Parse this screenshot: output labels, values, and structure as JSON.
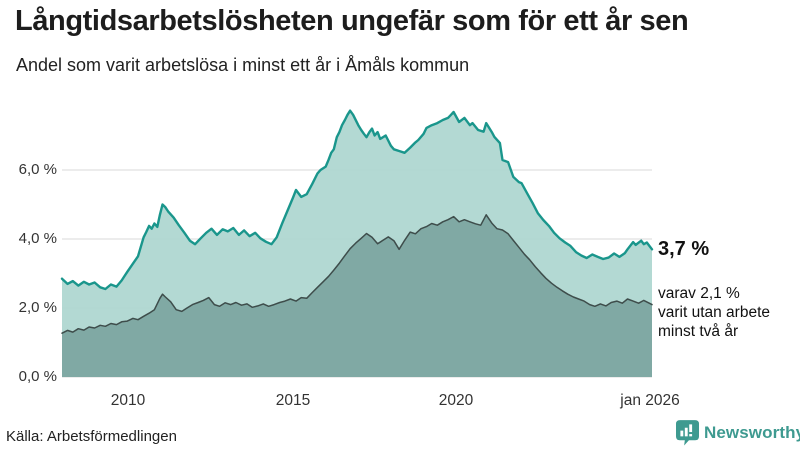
{
  "chart_data": {
    "type": "area",
    "title": "Långtidsarbetslösheten ungefär som för ett år sen",
    "subtitle": "Andel som varit arbetslösa i minst ett år i Åmåls kommun",
    "grid": true,
    "legend_position": "none",
    "x_axis": {
      "min": 2008.0,
      "max": 2026.08,
      "ticks": [
        {
          "year": 2010,
          "label": "2010"
        },
        {
          "year": 2015,
          "label": "2015"
        },
        {
          "year": 2020,
          "label": "2020"
        },
        {
          "year": 2026.08,
          "label": "jan 2026"
        }
      ]
    },
    "y_axis": {
      "min": 0,
      "max": 7.8,
      "unit": "%",
      "ticks": [
        {
          "value": 0,
          "label": "0,0 %"
        },
        {
          "value": 2,
          "label": "2,0 %"
        },
        {
          "value": 4,
          "label": "4,0 %"
        },
        {
          "value": 6,
          "label": "6,0 %"
        }
      ]
    },
    "series": [
      {
        "name": "Arbetslösa minst ett år",
        "line_color": "#1a968c",
        "fill_color": "#acd6cf",
        "end_value": 3.7,
        "points": [
          [
            2008.0,
            2.85
          ],
          [
            2008.17,
            2.7
          ],
          [
            2008.33,
            2.78
          ],
          [
            2008.5,
            2.65
          ],
          [
            2008.67,
            2.76
          ],
          [
            2008.83,
            2.68
          ],
          [
            2009.0,
            2.74
          ],
          [
            2009.17,
            2.6
          ],
          [
            2009.33,
            2.55
          ],
          [
            2009.5,
            2.68
          ],
          [
            2009.67,
            2.62
          ],
          [
            2009.83,
            2.8
          ],
          [
            2010.0,
            3.05
          ],
          [
            2010.17,
            3.28
          ],
          [
            2010.33,
            3.5
          ],
          [
            2010.5,
            4.05
          ],
          [
            2010.58,
            4.2
          ],
          [
            2010.67,
            4.38
          ],
          [
            2010.75,
            4.3
          ],
          [
            2010.83,
            4.45
          ],
          [
            2010.92,
            4.35
          ],
          [
            2011.0,
            4.7
          ],
          [
            2011.08,
            5.0
          ],
          [
            2011.17,
            4.92
          ],
          [
            2011.25,
            4.8
          ],
          [
            2011.42,
            4.62
          ],
          [
            2011.58,
            4.4
          ],
          [
            2011.75,
            4.18
          ],
          [
            2011.92,
            3.95
          ],
          [
            2012.08,
            3.85
          ],
          [
            2012.25,
            4.02
          ],
          [
            2012.42,
            4.18
          ],
          [
            2012.58,
            4.3
          ],
          [
            2012.75,
            4.12
          ],
          [
            2012.92,
            4.28
          ],
          [
            2013.08,
            4.22
          ],
          [
            2013.25,
            4.32
          ],
          [
            2013.42,
            4.12
          ],
          [
            2013.58,
            4.25
          ],
          [
            2013.75,
            4.08
          ],
          [
            2013.92,
            4.18
          ],
          [
            2014.08,
            4.02
          ],
          [
            2014.25,
            3.92
          ],
          [
            2014.42,
            3.85
          ],
          [
            2014.58,
            4.05
          ],
          [
            2014.75,
            4.46
          ],
          [
            2014.92,
            4.84
          ],
          [
            2015.08,
            5.2
          ],
          [
            2015.17,
            5.42
          ],
          [
            2015.33,
            5.22
          ],
          [
            2015.5,
            5.3
          ],
          [
            2015.67,
            5.6
          ],
          [
            2015.83,
            5.9
          ],
          [
            2015.92,
            6.0
          ],
          [
            2016.08,
            6.1
          ],
          [
            2016.17,
            6.3
          ],
          [
            2016.25,
            6.5
          ],
          [
            2016.33,
            6.6
          ],
          [
            2016.42,
            6.95
          ],
          [
            2016.5,
            7.1
          ],
          [
            2016.58,
            7.3
          ],
          [
            2016.67,
            7.45
          ],
          [
            2016.75,
            7.6
          ],
          [
            2016.83,
            7.72
          ],
          [
            2016.92,
            7.6
          ],
          [
            2017.08,
            7.3
          ],
          [
            2017.17,
            7.16
          ],
          [
            2017.25,
            7.05
          ],
          [
            2017.33,
            6.95
          ],
          [
            2017.42,
            7.1
          ],
          [
            2017.5,
            7.2
          ],
          [
            2017.58,
            7.0
          ],
          [
            2017.67,
            7.1
          ],
          [
            2017.75,
            6.9
          ],
          [
            2017.92,
            7.0
          ],
          [
            2018.08,
            6.7
          ],
          [
            2018.17,
            6.6
          ],
          [
            2018.33,
            6.55
          ],
          [
            2018.5,
            6.5
          ],
          [
            2018.67,
            6.65
          ],
          [
            2018.83,
            6.8
          ],
          [
            2018.92,
            6.87
          ],
          [
            2019.08,
            7.05
          ],
          [
            2019.17,
            7.22
          ],
          [
            2019.33,
            7.3
          ],
          [
            2019.5,
            7.36
          ],
          [
            2019.67,
            7.45
          ],
          [
            2019.83,
            7.51
          ],
          [
            2019.92,
            7.6
          ],
          [
            2020.0,
            7.68
          ],
          [
            2020.17,
            7.39
          ],
          [
            2020.33,
            7.51
          ],
          [
            2020.5,
            7.3
          ],
          [
            2020.58,
            7.36
          ],
          [
            2020.75,
            7.16
          ],
          [
            2020.92,
            7.11
          ],
          [
            2021.0,
            7.36
          ],
          [
            2021.17,
            7.1
          ],
          [
            2021.25,
            6.96
          ],
          [
            2021.42,
            6.78
          ],
          [
            2021.5,
            6.29
          ],
          [
            2021.67,
            6.23
          ],
          [
            2021.83,
            5.8
          ],
          [
            2022.0,
            5.65
          ],
          [
            2022.08,
            5.62
          ],
          [
            2022.25,
            5.33
          ],
          [
            2022.42,
            5.04
          ],
          [
            2022.58,
            4.75
          ],
          [
            2022.75,
            4.55
          ],
          [
            2022.92,
            4.38
          ],
          [
            2023.08,
            4.18
          ],
          [
            2023.25,
            4.02
          ],
          [
            2023.42,
            3.9
          ],
          [
            2023.58,
            3.8
          ],
          [
            2023.75,
            3.62
          ],
          [
            2023.92,
            3.52
          ],
          [
            2024.08,
            3.45
          ],
          [
            2024.25,
            3.55
          ],
          [
            2024.42,
            3.48
          ],
          [
            2024.58,
            3.42
          ],
          [
            2024.75,
            3.46
          ],
          [
            2024.92,
            3.58
          ],
          [
            2025.08,
            3.48
          ],
          [
            2025.25,
            3.59
          ],
          [
            2025.33,
            3.7
          ],
          [
            2025.5,
            3.91
          ],
          [
            2025.58,
            3.83
          ],
          [
            2025.75,
            3.95
          ],
          [
            2025.83,
            3.85
          ],
          [
            2025.92,
            3.9
          ],
          [
            2026.08,
            3.7
          ]
        ]
      },
      {
        "name": "Arbetslösa minst två år",
        "line_color": "#3e4d4b",
        "fill_color": "#7ca5a0",
        "end_value": 2.1,
        "points": [
          [
            2008.0,
            1.27
          ],
          [
            2008.17,
            1.35
          ],
          [
            2008.33,
            1.3
          ],
          [
            2008.5,
            1.4
          ],
          [
            2008.67,
            1.36
          ],
          [
            2008.83,
            1.45
          ],
          [
            2009.0,
            1.42
          ],
          [
            2009.17,
            1.5
          ],
          [
            2009.33,
            1.47
          ],
          [
            2009.5,
            1.55
          ],
          [
            2009.67,
            1.52
          ],
          [
            2009.83,
            1.6
          ],
          [
            2010.0,
            1.62
          ],
          [
            2010.17,
            1.7
          ],
          [
            2010.33,
            1.66
          ],
          [
            2010.5,
            1.76
          ],
          [
            2010.67,
            1.85
          ],
          [
            2010.83,
            1.95
          ],
          [
            2011.0,
            2.28
          ],
          [
            2011.08,
            2.4
          ],
          [
            2011.17,
            2.32
          ],
          [
            2011.33,
            2.18
          ],
          [
            2011.5,
            1.95
          ],
          [
            2011.67,
            1.9
          ],
          [
            2011.83,
            2.0
          ],
          [
            2012.0,
            2.1
          ],
          [
            2012.17,
            2.16
          ],
          [
            2012.33,
            2.22
          ],
          [
            2012.5,
            2.3
          ],
          [
            2012.67,
            2.1
          ],
          [
            2012.83,
            2.05
          ],
          [
            2013.0,
            2.15
          ],
          [
            2013.17,
            2.1
          ],
          [
            2013.33,
            2.16
          ],
          [
            2013.5,
            2.08
          ],
          [
            2013.67,
            2.12
          ],
          [
            2013.83,
            2.02
          ],
          [
            2014.0,
            2.06
          ],
          [
            2014.17,
            2.12
          ],
          [
            2014.33,
            2.05
          ],
          [
            2014.5,
            2.1
          ],
          [
            2014.67,
            2.16
          ],
          [
            2014.83,
            2.2
          ],
          [
            2015.0,
            2.26
          ],
          [
            2015.17,
            2.2
          ],
          [
            2015.33,
            2.3
          ],
          [
            2015.5,
            2.28
          ],
          [
            2015.67,
            2.45
          ],
          [
            2015.83,
            2.6
          ],
          [
            2016.0,
            2.76
          ],
          [
            2016.17,
            2.92
          ],
          [
            2016.33,
            3.1
          ],
          [
            2016.5,
            3.3
          ],
          [
            2016.67,
            3.52
          ],
          [
            2016.83,
            3.72
          ],
          [
            2017.0,
            3.88
          ],
          [
            2017.17,
            4.02
          ],
          [
            2017.33,
            4.16
          ],
          [
            2017.5,
            4.05
          ],
          [
            2017.67,
            3.86
          ],
          [
            2017.83,
            3.96
          ],
          [
            2018.0,
            4.06
          ],
          [
            2018.17,
            3.95
          ],
          [
            2018.33,
            3.7
          ],
          [
            2018.5,
            3.96
          ],
          [
            2018.67,
            4.2
          ],
          [
            2018.83,
            4.15
          ],
          [
            2019.0,
            4.3
          ],
          [
            2019.17,
            4.36
          ],
          [
            2019.33,
            4.45
          ],
          [
            2019.5,
            4.4
          ],
          [
            2019.67,
            4.5
          ],
          [
            2019.83,
            4.56
          ],
          [
            2020.0,
            4.65
          ],
          [
            2020.17,
            4.5
          ],
          [
            2020.33,
            4.56
          ],
          [
            2020.5,
            4.5
          ],
          [
            2020.67,
            4.44
          ],
          [
            2020.83,
            4.4
          ],
          [
            2021.0,
            4.7
          ],
          [
            2021.17,
            4.46
          ],
          [
            2021.33,
            4.3
          ],
          [
            2021.5,
            4.26
          ],
          [
            2021.67,
            4.15
          ],
          [
            2021.83,
            3.96
          ],
          [
            2022.0,
            3.76
          ],
          [
            2022.17,
            3.56
          ],
          [
            2022.33,
            3.4
          ],
          [
            2022.5,
            3.2
          ],
          [
            2022.67,
            3.02
          ],
          [
            2022.83,
            2.86
          ],
          [
            2023.0,
            2.72
          ],
          [
            2023.17,
            2.6
          ],
          [
            2023.33,
            2.5
          ],
          [
            2023.5,
            2.4
          ],
          [
            2023.67,
            2.32
          ],
          [
            2023.83,
            2.26
          ],
          [
            2024.0,
            2.2
          ],
          [
            2024.17,
            2.1
          ],
          [
            2024.33,
            2.05
          ],
          [
            2024.5,
            2.12
          ],
          [
            2024.67,
            2.06
          ],
          [
            2024.83,
            2.16
          ],
          [
            2025.0,
            2.2
          ],
          [
            2025.17,
            2.14
          ],
          [
            2025.33,
            2.26
          ],
          [
            2025.5,
            2.2
          ],
          [
            2025.67,
            2.14
          ],
          [
            2025.83,
            2.22
          ],
          [
            2026.08,
            2.1
          ]
        ]
      }
    ],
    "annotations": [
      {
        "text": "3,7 %",
        "bold": true
      },
      {
        "lines": [
          "varav 2,1 %",
          "varit utan arbete",
          "minst två år"
        ]
      }
    ],
    "grid_color": "#d9d9d9"
  },
  "footer": {
    "source": "Källa: Arbetsförmedlingen",
    "brand": "Newsworthy",
    "brand_color": "#3e9a90"
  }
}
